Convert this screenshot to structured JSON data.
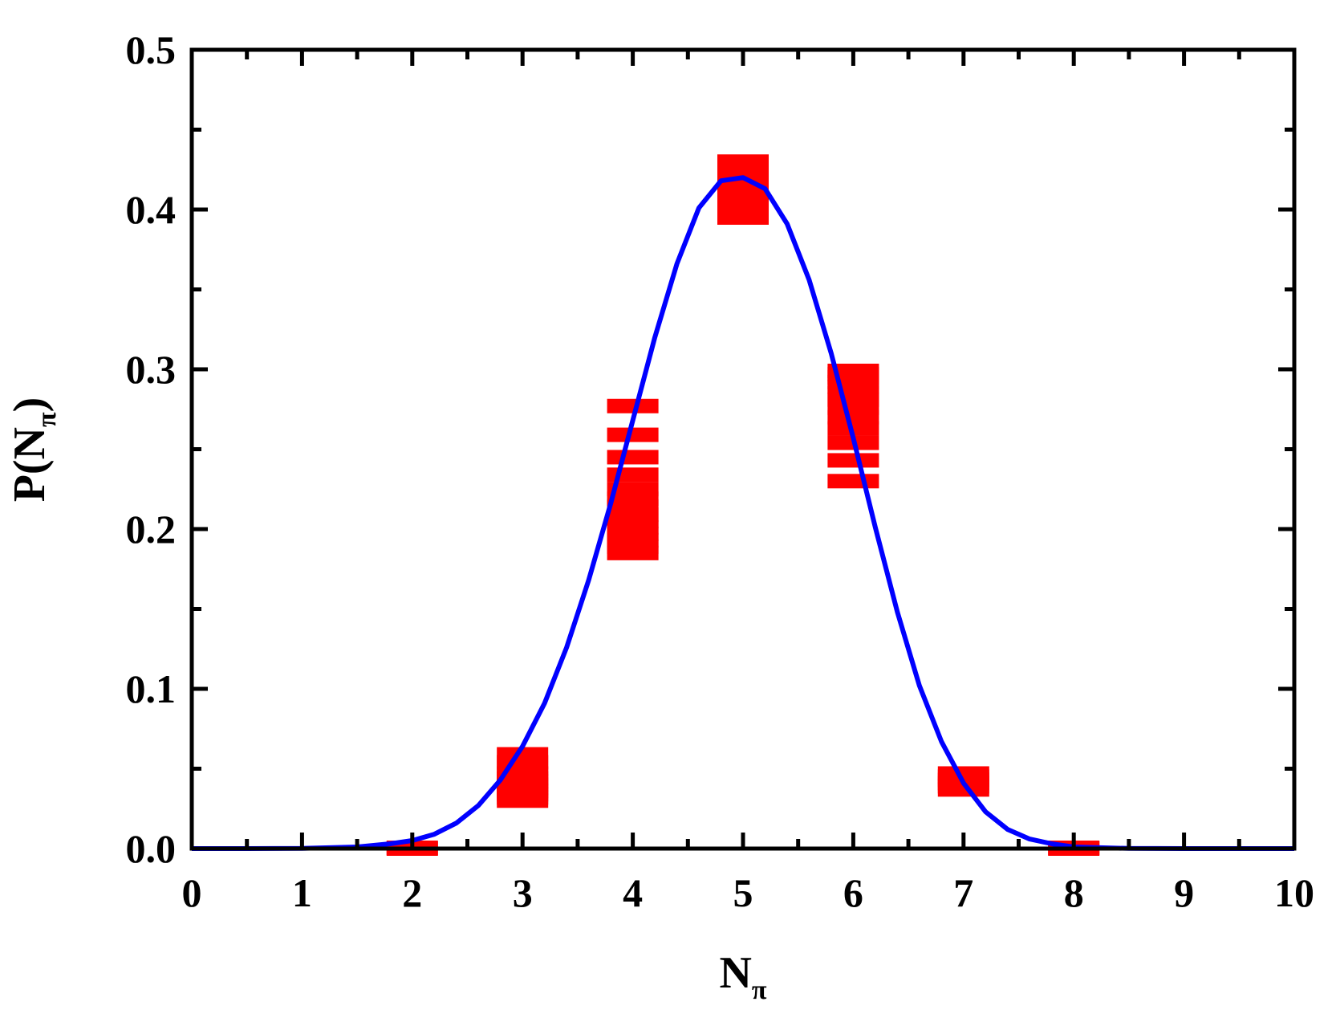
{
  "chart_data": {
    "type": "scatter",
    "title": "",
    "xlabel": {
      "main": "N",
      "sub": "π"
    },
    "ylabel": {
      "main": "P(N",
      "sub": "π",
      "close": ")"
    },
    "xlim": [
      0,
      10
    ],
    "ylim": [
      0,
      0.5
    ],
    "x_ticks": [
      "0",
      "1",
      "2",
      "3",
      "4",
      "5",
      "6",
      "7",
      "8",
      "9",
      "10"
    ],
    "y_ticks": [
      "0.0",
      "0.1",
      "0.2",
      "0.3",
      "0.4",
      "0.5"
    ],
    "x_minor_step": 0.5,
    "y_minor_step": 0.05,
    "grid": false,
    "legend": "none",
    "colors": {
      "points": "#ff0000",
      "curve": "#0000ff",
      "axes": "#000000"
    },
    "series": [
      {
        "kind": "points",
        "marker": "filled-square-stack",
        "groups": [
          {
            "x": 2,
            "y": [
              0.0,
              0.0005
            ]
          },
          {
            "x": 3,
            "y": [
              0.03,
              0.032,
              0.034,
              0.036,
              0.038,
              0.04,
              0.042,
              0.044,
              0.047,
              0.05,
              0.054,
              0.059
            ]
          },
          {
            "x": 4,
            "y": [
              0.185,
              0.189,
              0.193,
              0.197,
              0.201,
              0.205,
              0.209,
              0.214,
              0.219,
              0.225,
              0.234,
              0.245,
              0.259,
              0.277
            ]
          },
          {
            "x": 5,
            "y": [
              0.395,
              0.401,
              0.408,
              0.414,
              0.418,
              0.42,
              0.422,
              0.424,
              0.426,
              0.428,
              0.43
            ]
          },
          {
            "x": 6,
            "y": [
              0.23,
              0.243,
              0.254,
              0.263,
              0.27,
              0.276,
              0.281,
              0.285,
              0.289,
              0.292,
              0.295,
              0.297,
              0.299
            ]
          },
          {
            "x": 7,
            "y": [
              0.037,
              0.039,
              0.041,
              0.043,
              0.045,
              0.047
            ]
          },
          {
            "x": 8,
            "y": [
              0.0,
              0.0005
            ]
          }
        ]
      },
      {
        "kind": "curve",
        "x": [
          0,
          0.5,
          1,
          1.5,
          1.8,
          2,
          2.2,
          2.4,
          2.6,
          2.8,
          3,
          3.2,
          3.4,
          3.6,
          3.8,
          4,
          4.2,
          4.4,
          4.6,
          4.8,
          5,
          5.2,
          5.4,
          5.6,
          5.8,
          6,
          6.2,
          6.4,
          6.6,
          6.8,
          7,
          7.2,
          7.4,
          7.6,
          7.8,
          8,
          8.5,
          9,
          9.5,
          10
        ],
        "y": [
          0,
          0,
          0.0001,
          0.001,
          0.003,
          0.005,
          0.009,
          0.016,
          0.027,
          0.043,
          0.064,
          0.091,
          0.126,
          0.168,
          0.216,
          0.268,
          0.32,
          0.366,
          0.401,
          0.418,
          0.42,
          0.413,
          0.391,
          0.356,
          0.31,
          0.257,
          0.201,
          0.148,
          0.102,
          0.067,
          0.041,
          0.023,
          0.012,
          0.006,
          0.003,
          0.001,
          0.0001,
          0,
          0,
          0
        ]
      }
    ]
  }
}
